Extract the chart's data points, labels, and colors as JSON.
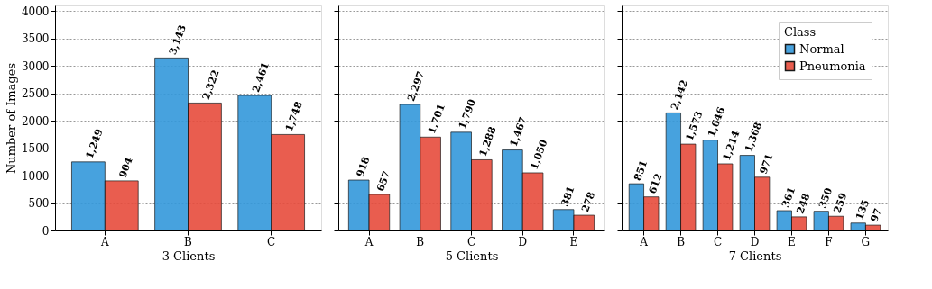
{
  "chart_data": [
    {
      "type": "bar",
      "xlabel": "3 Clients",
      "ylabel": "Number of Images",
      "categories": [
        "A",
        "B",
        "C"
      ],
      "series": [
        {
          "color": "#3498db",
          "values": [
            1249,
            3143,
            2461
          ],
          "value_labels": [
            "1,249",
            "3,143",
            "2,461"
          ]
        },
        {
          "color": "#e74c3c",
          "values": [
            904,
            2322,
            1748
          ],
          "value_labels": [
            "904",
            "2,322",
            "1,748"
          ]
        }
      ],
      "ylim": [
        0,
        4100
      ],
      "yticks": [
        0,
        500,
        1000,
        1500,
        2000,
        2500,
        3000,
        3500,
        4000
      ],
      "grid": "y"
    },
    {
      "type": "bar",
      "xlabel": "5 Clients",
      "categories": [
        "A",
        "B",
        "C",
        "D",
        "E"
      ],
      "series": [
        {
          "color": "#3498db",
          "values": [
            918,
            2297,
            1790,
            1467,
            381
          ],
          "value_labels": [
            "918",
            "2,297",
            "1,790",
            "1,467",
            "381"
          ]
        },
        {
          "color": "#e74c3c",
          "values": [
            657,
            1701,
            1288,
            1050,
            278
          ],
          "value_labels": [
            "657",
            "1,701",
            "1,288",
            "1,050",
            "278"
          ]
        }
      ],
      "ylim": [
        0,
        4100
      ],
      "yticks": [
        0,
        500,
        1000,
        1500,
        2000,
        2500,
        3000,
        3500,
        4000
      ],
      "grid": "y",
      "tick_labels": "x"
    },
    {
      "type": "bar",
      "xlabel": "7 Clients",
      "categories": [
        "A",
        "B",
        "C",
        "D",
        "E",
        "F",
        "G"
      ],
      "series": [
        {
          "name": "Normal",
          "color": "#3498db",
          "values": [
            851,
            2142,
            1646,
            1368,
            361,
            350,
            135
          ],
          "value_labels": [
            "851",
            "2,142",
            "1,646",
            "1,368",
            "361",
            "350",
            "135"
          ]
        },
        {
          "name": "Pneumonia",
          "color": "#e74c3c",
          "values": [
            612,
            1573,
            1214,
            971,
            248,
            259,
            97
          ],
          "value_labels": [
            "612",
            "1,573",
            "1,214",
            "971",
            "248",
            "259",
            "97"
          ]
        }
      ],
      "ylim": [
        0,
        4100
      ],
      "yticks": [
        0,
        500,
        1000,
        1500,
        2000,
        2500,
        3000,
        3500,
        4000
      ],
      "grid": "y",
      "tick_labels": "x",
      "legend": "top right",
      "legend_title": "Class"
    }
  ]
}
